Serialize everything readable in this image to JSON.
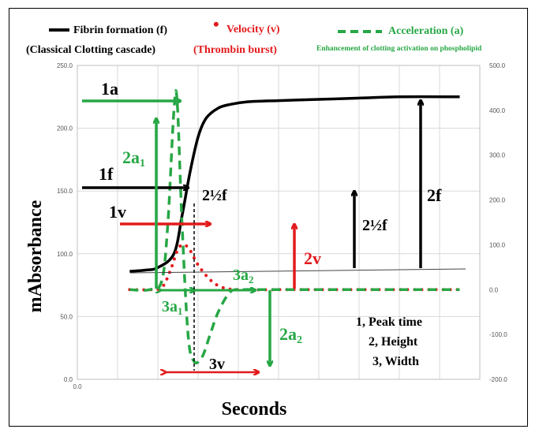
{
  "colors": {
    "black": "#000000",
    "red": "#e31a1c",
    "green": "#27a745",
    "grid": "#d9d9d9"
  },
  "legend": {
    "fibrin": "Fibrin formation  (f)",
    "velocity": "Velocity (v)",
    "acceleration": "Acceleration  (a)",
    "classical": "(Classical Clotting cascade)",
    "thrombin": "(Thrombin burst)",
    "enhancement": "Enhancement of clotting activation on phospholipid"
  },
  "annotations": {
    "l1a": "1a",
    "l1f": "1f",
    "l1v": "1v",
    "l2a1": "2a",
    "l2a1_sub": "1",
    "half_f": "2½f",
    "half_f2": "2½f",
    "l2f": "2f",
    "l2v": "2v",
    "l3a2": "3a",
    "l3a2_sub": "2",
    "l3a1": "3a",
    "l3a1_sub": "1",
    "l2a2": "2a",
    "l2a2_sub": "2",
    "l3v": "3v",
    "key1": "1, Peak time",
    "key2": "2, Height",
    "key3": "3, Width"
  },
  "chart_data": {
    "type": "line",
    "xlabel": "Seconds",
    "ylabel": "mAbsorbance",
    "x_ticks": [
      "0.0"
    ],
    "y_left_ticks": [
      "0.0",
      "50.0",
      "100.0",
      "150.0",
      "200.0",
      "250.0"
    ],
    "y_right_ticks": [
      "-200.0",
      "-100.0",
      "0.0",
      "100.0",
      "200.0",
      "300.0",
      "400.0",
      "500.0"
    ],
    "ylim_left": [
      0,
      250
    ],
    "ylim_right": [
      -200,
      500
    ],
    "xlim": [
      0,
      100
    ],
    "grid": true,
    "legend_position": "top",
    "series": [
      {
        "name": "Fibrin formation (f)",
        "axis": "left",
        "style": "solid",
        "x": [
          13,
          17,
          20,
          24,
          26,
          28,
          30,
          32,
          35,
          38,
          42,
          50,
          60,
          70,
          80,
          95
        ],
        "y": [
          86,
          87,
          89,
          100,
          130,
          165,
          193,
          208,
          216,
          219,
          221,
          222,
          223,
          224,
          225,
          225
        ]
      },
      {
        "name": "Velocity (v)",
        "axis": "right",
        "style": "dotted",
        "x": [
          13,
          18,
          21,
          23,
          25,
          26.5,
          28,
          30,
          33,
          36,
          40,
          50,
          60,
          70,
          80,
          95
        ],
        "y": [
          0,
          0,
          5,
          40,
          90,
          100,
          88,
          55,
          22,
          5,
          0,
          0,
          0,
          0,
          0,
          0
        ]
      },
      {
        "name": "Acceleration (a)",
        "axis": "right",
        "style": "dashed",
        "x": [
          13,
          18,
          21,
          22.5,
          24,
          24.8,
          26,
          27.5,
          29,
          31,
          33,
          35,
          38,
          41,
          45,
          50,
          60,
          70,
          80,
          95
        ],
        "y": [
          0,
          0,
          20,
          150,
          400,
          420,
          150,
          -100,
          -160,
          -150,
          -100,
          -50,
          -5,
          0,
          0,
          0,
          0,
          0,
          0,
          0
        ]
      }
    ]
  }
}
